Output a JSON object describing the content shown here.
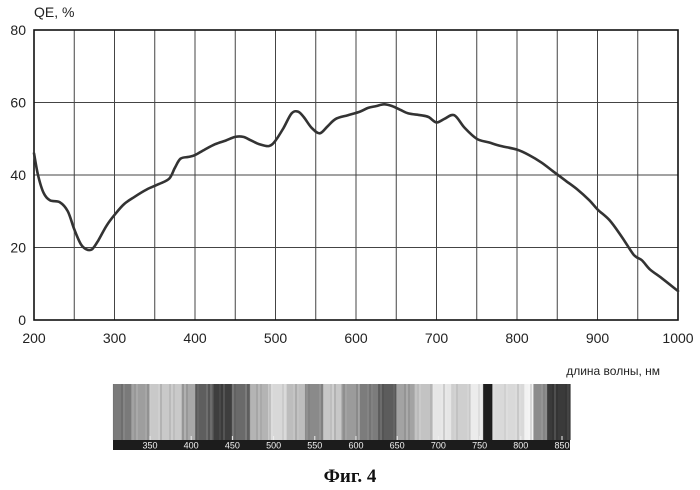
{
  "chart_data": {
    "type": "line",
    "ylabel": "QE, %",
    "xlabel": "длина волны, нм",
    "xlim": [
      200,
      1000
    ],
    "ylim": [
      0,
      80
    ],
    "xticks": [
      200,
      300,
      400,
      500,
      600,
      700,
      800,
      900,
      1000
    ],
    "yticks": [
      0,
      20,
      40,
      60,
      80
    ],
    "grid": true,
    "line_color": "#333333",
    "series": [
      {
        "x": [
          200,
          205,
          212,
          220,
          232,
          242,
          250,
          258,
          265,
          272,
          280,
          290,
          300,
          312,
          325,
          340,
          355,
          368,
          375,
          382,
          392,
          400,
          412,
          425,
          438,
          450,
          460,
          470,
          480,
          492,
          500,
          510,
          520,
          528,
          535,
          545,
          555,
          565,
          575,
          590,
          605,
          615,
          625,
          635,
          645,
          655,
          665,
          680,
          690,
          700,
          710,
          722,
          735,
          750,
          765,
          780,
          800,
          815,
          830,
          845,
          860,
          875,
          890,
          900,
          915,
          930,
          945,
          955,
          965,
          980,
          1000
        ],
        "y": [
          46,
          40,
          35,
          33,
          32.5,
          30,
          25,
          21,
          19.5,
          19.5,
          22,
          26,
          29,
          32,
          34,
          36,
          37.5,
          39,
          42,
          44.5,
          45,
          45.5,
          47,
          48.5,
          49.5,
          50.5,
          50.5,
          49.5,
          48.5,
          48,
          49.5,
          53,
          57,
          57.5,
          56,
          53,
          51.5,
          53.5,
          55.5,
          56.5,
          57.5,
          58.5,
          59,
          59.5,
          59,
          58,
          57,
          56.5,
          56,
          54.5,
          55.5,
          56.5,
          53,
          50,
          49,
          48,
          47,
          45.5,
          43.5,
          41,
          38.5,
          36,
          33,
          30.5,
          27.5,
          23,
          18,
          16.5,
          14,
          11.5,
          8
        ]
      }
    ]
  },
  "spectrum_strip": {
    "ticks": [
      "350",
      "400",
      "450",
      "500",
      "550",
      "600",
      "650",
      "700",
      "750",
      "800",
      "850"
    ]
  },
  "caption": "Фиг. 4"
}
